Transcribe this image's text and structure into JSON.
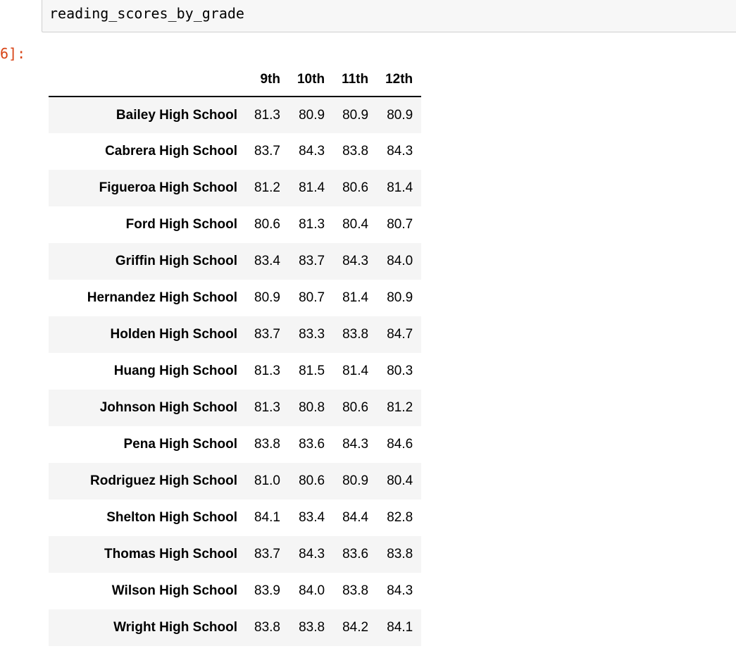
{
  "input": {
    "code": "reading_scores_by_grade"
  },
  "output": {
    "prompt": "6]:",
    "table": {
      "columns": [
        "9th",
        "10th",
        "11th",
        "12th"
      ],
      "rows": [
        {
          "school": "Bailey High School",
          "values": [
            "81.3",
            "80.9",
            "80.9",
            "80.9"
          ]
        },
        {
          "school": "Cabrera High School",
          "values": [
            "83.7",
            "84.3",
            "83.8",
            "84.3"
          ]
        },
        {
          "school": "Figueroa High School",
          "values": [
            "81.2",
            "81.4",
            "80.6",
            "81.4"
          ]
        },
        {
          "school": "Ford High School",
          "values": [
            "80.6",
            "81.3",
            "80.4",
            "80.7"
          ]
        },
        {
          "school": "Griffin High School",
          "values": [
            "83.4",
            "83.7",
            "84.3",
            "84.0"
          ]
        },
        {
          "school": "Hernandez High School",
          "values": [
            "80.9",
            "80.7",
            "81.4",
            "80.9"
          ]
        },
        {
          "school": "Holden High School",
          "values": [
            "83.7",
            "83.3",
            "83.8",
            "84.7"
          ]
        },
        {
          "school": "Huang High School",
          "values": [
            "81.3",
            "81.5",
            "81.4",
            "80.3"
          ]
        },
        {
          "school": "Johnson High School",
          "values": [
            "81.3",
            "80.8",
            "80.6",
            "81.2"
          ]
        },
        {
          "school": "Pena High School",
          "values": [
            "83.8",
            "83.6",
            "84.3",
            "84.6"
          ]
        },
        {
          "school": "Rodriguez High School",
          "values": [
            "81.0",
            "80.6",
            "80.9",
            "80.4"
          ]
        },
        {
          "school": "Shelton High School",
          "values": [
            "84.1",
            "83.4",
            "84.4",
            "82.8"
          ]
        },
        {
          "school": "Thomas High School",
          "values": [
            "83.7",
            "84.3",
            "83.6",
            "83.8"
          ]
        },
        {
          "school": "Wilson High School",
          "values": [
            "83.9",
            "84.0",
            "83.8",
            "84.3"
          ]
        },
        {
          "school": "Wright High School",
          "values": [
            "83.8",
            "83.8",
            "84.2",
            "84.1"
          ]
        }
      ]
    }
  },
  "colors": {
    "prompt": "#d84315",
    "input_background": "#f7f7f7",
    "row_stripe": "#f5f5f5"
  }
}
